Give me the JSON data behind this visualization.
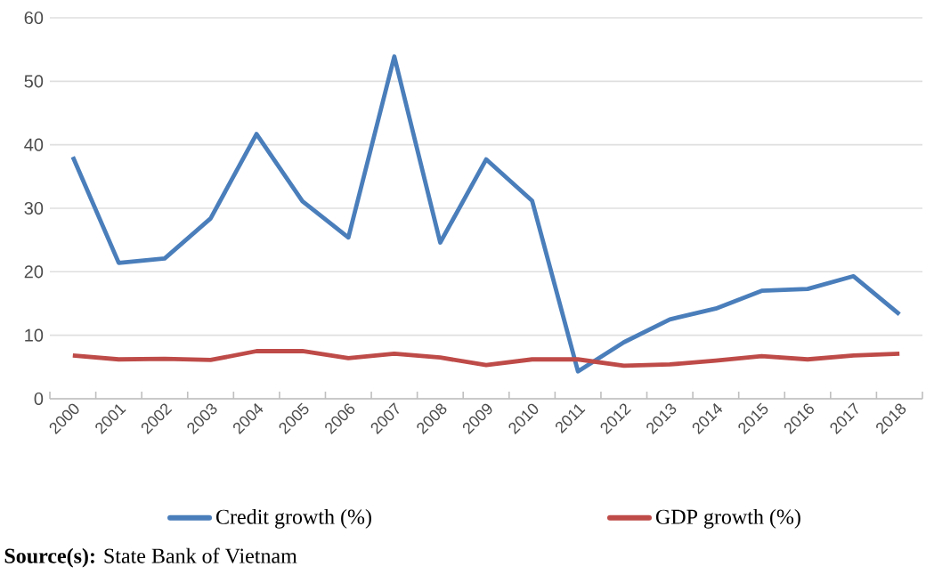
{
  "chart_data": {
    "type": "line",
    "categories": [
      "2000",
      "2001",
      "2002",
      "2003",
      "2004",
      "2005",
      "2006",
      "2007",
      "2008",
      "2009",
      "2010",
      "2011",
      "2012",
      "2013",
      "2014",
      "2015",
      "2016",
      "2017",
      "2018"
    ],
    "series": [
      {
        "name": "Credit growth (%)",
        "color": "#4a7ebb",
        "values": [
          38.1,
          21.4,
          22.1,
          28.4,
          41.7,
          31.1,
          25.4,
          53.9,
          24.6,
          37.7,
          31.2,
          4.3,
          8.9,
          12.5,
          14.2,
          17.0,
          17.3,
          19.3,
          13.3
        ]
      },
      {
        "name": "GDP growth (%)",
        "color": "#be4b48",
        "values": [
          6.8,
          6.2,
          6.3,
          6.1,
          7.5,
          7.5,
          6.4,
          7.1,
          6.5,
          5.3,
          6.2,
          6.2,
          5.2,
          5.4,
          6.0,
          6.7,
          6.2,
          6.8,
          7.1
        ]
      }
    ],
    "ylim": [
      0,
      60
    ],
    "yticks": [
      0,
      10,
      20,
      30,
      40,
      50,
      60
    ],
    "grid": "y",
    "legend": "bottom",
    "marker": "none",
    "line_style": "solid",
    "annotations": [
      "**Source(s):** State Bank of Vietnam"
    ]
  }
}
